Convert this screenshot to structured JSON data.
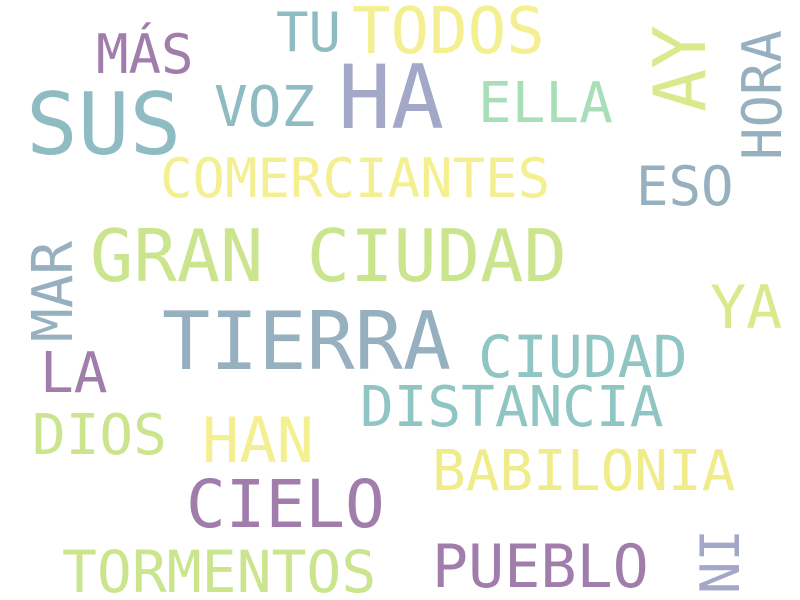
{
  "colors": {
    "background": "#ffffff",
    "teal": "#8fbcc2",
    "slate": "#96b0c0",
    "lavender": "#a3a8c8",
    "purple": "#a07dab",
    "green": "#a8deb8",
    "lime": "#cbe58e",
    "yellow": "#f4f091"
  },
  "words": [
    {
      "text": "SUS",
      "color": "#8fbcc2"
    },
    {
      "text": "HA",
      "color": "#a3a8c8"
    },
    {
      "text": "TIERRA",
      "color": "#96b0c0"
    },
    {
      "text": "GRAN CIUDAD",
      "color": "#cbe58e"
    },
    {
      "text": "TODOS",
      "color": "#f4f091"
    },
    {
      "text": "AY",
      "color": "#dbe98c"
    },
    {
      "text": "CIELO",
      "color": "#a07dab"
    },
    {
      "text": "HORA",
      "color": "#96b0c0"
    },
    {
      "text": "COMERCIANTES",
      "color": "#f4f091"
    },
    {
      "text": "CIUDAD",
      "color": "#8fc5c2"
    },
    {
      "text": "DISTANCIA",
      "color": "#8fc5c2"
    },
    {
      "text": "BABILONIA",
      "color": "#f0ec8a"
    },
    {
      "text": "PUEBLO",
      "color": "#a07dab"
    },
    {
      "text": "TORMENTOS",
      "color": "#cbe58e"
    },
    {
      "text": "VOZ",
      "color": "#8fbcc2"
    },
    {
      "text": "ELLA",
      "color": "#a8deb8"
    },
    {
      "text": "ESO",
      "color": "#96b0c0"
    },
    {
      "text": "MÁS",
      "color": "#a07dab"
    },
    {
      "text": "TU",
      "color": "#8fbcc2"
    },
    {
      "text": "YA",
      "color": "#dbe98c"
    },
    {
      "text": "MAR",
      "color": "#96b0c0"
    },
    {
      "text": "LA",
      "color": "#a07dab"
    },
    {
      "text": "DIOS",
      "color": "#cbe58e"
    },
    {
      "text": "HAN",
      "color": "#f4f091"
    },
    {
      "text": "NI",
      "color": "#a3a8c8"
    }
  ]
}
